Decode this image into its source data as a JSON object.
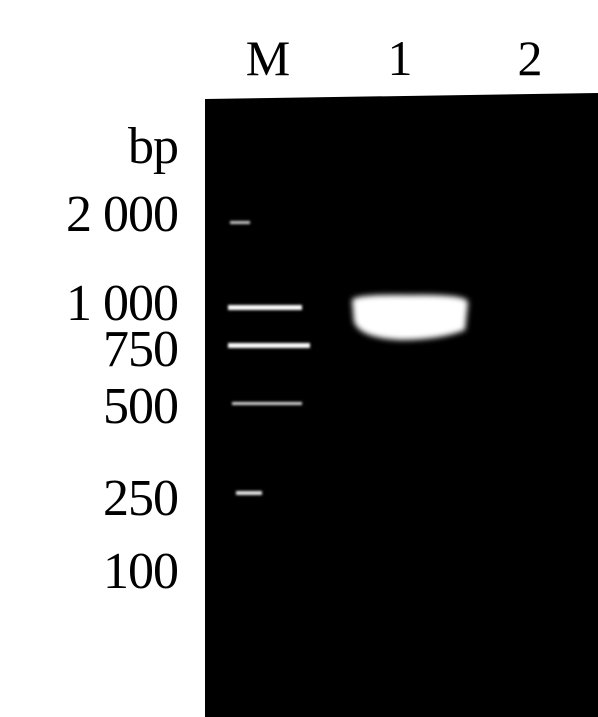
{
  "lanes": [
    "M",
    "1",
    "2"
  ],
  "size_unit": "bp",
  "ladder": [
    "2 000",
    "1 000",
    "750",
    "500",
    "250",
    "100"
  ]
}
